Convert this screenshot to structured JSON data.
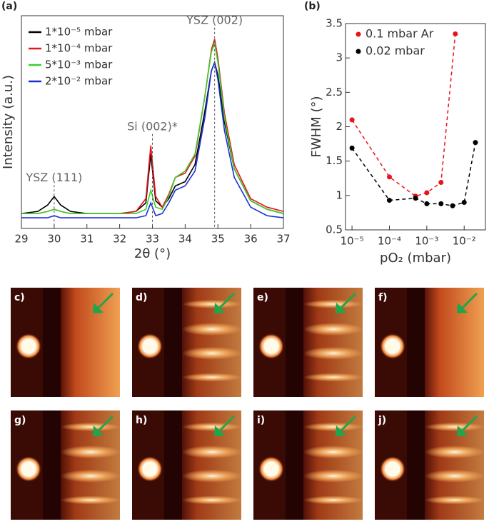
{
  "chart_data": [
    {
      "type": "line",
      "panel_label": "(a)",
      "x_label": "2θ (°)",
      "y_label": "Intensity (a.u.)",
      "x": [
        29,
        29.5,
        29.8,
        30,
        30.2,
        30.5,
        31,
        31.5,
        32,
        32.5,
        32.8,
        32.95,
        33.1,
        33.3,
        33.5,
        33.7,
        34,
        34.3,
        34.6,
        34.8,
        34.9,
        35,
        35.2,
        35.5,
        36,
        36.5,
        37
      ],
      "series": [
        {
          "name": "1*10⁻⁵ mbar",
          "color": "#000000",
          "values": [
            7,
            8,
            11,
            15,
            11,
            8,
            7,
            7,
            7,
            8,
            12,
            35,
            13,
            10,
            14,
            20,
            22,
            30,
            55,
            74,
            78,
            72,
            50,
            28,
            13,
            9,
            7
          ]
        },
        {
          "name": "1*10⁻⁴ mbar",
          "color": "#e8141c",
          "values": [
            7,
            7,
            8,
            9,
            8,
            7,
            7,
            7,
            7,
            8,
            14,
            39,
            15,
            10,
            16,
            24,
            26,
            34,
            62,
            84,
            89,
            80,
            54,
            30,
            14,
            10,
            8
          ]
        },
        {
          "name": "5*10⁻³ mbar",
          "color": "#3ccf2a",
          "values": [
            7,
            7,
            8,
            9,
            8,
            7,
            7,
            7,
            7,
            7,
            9,
            18,
            10,
            9,
            15,
            24,
            27,
            35,
            62,
            83,
            87,
            78,
            52,
            28,
            13,
            9,
            7
          ]
        },
        {
          "name": "2*10⁻² mbar",
          "color": "#1c2fd6",
          "values": [
            5,
            5,
            5,
            6,
            5,
            5,
            5,
            5,
            5,
            5,
            6,
            12,
            6,
            7,
            12,
            18,
            20,
            27,
            52,
            74,
            78,
            70,
            46,
            24,
            10,
            6,
            5
          ]
        }
      ],
      "xlim": [
        29,
        37
      ],
      "xticks": [
        29,
        30,
        31,
        32,
        33,
        34,
        35,
        36,
        37
      ],
      "ylim": [
        0,
        100
      ],
      "annotations": [
        {
          "text": "YSZ (111)",
          "x": 30
        },
        {
          "text": "Si (002)*",
          "x": 33
        },
        {
          "text": "YSZ (002)",
          "x": 34.9
        }
      ]
    },
    {
      "type": "scatter",
      "panel_label": "(b)",
      "x_label": "pO₂ (mbar)",
      "y_label": "FWHM (°)",
      "log_x": true,
      "connect": "dashed",
      "series": [
        {
          "name": "0.1 mbar Ar",
          "color": "#e8141c",
          "x": [
            1e-05,
            0.0001,
            0.0005,
            0.001,
            0.0024,
            0.0058
          ],
          "values": [
            2.1,
            1.27,
            0.99,
            1.04,
            1.19,
            3.35
          ]
        },
        {
          "name": "0.02 mbar",
          "color": "#000000",
          "x": [
            1e-05,
            0.0001,
            0.0005,
            0.001,
            0.0024,
            0.0049,
            0.01,
            0.02
          ],
          "values": [
            1.69,
            0.93,
            0.96,
            0.88,
            0.88,
            0.85,
            0.9,
            1.77
          ]
        }
      ],
      "xlim": [
        6.7e-06,
        0.037
      ],
      "xticks": [
        {
          "value": 1e-05,
          "label": "10⁻⁵"
        },
        {
          "value": 0.0001,
          "label": "10⁻⁴"
        },
        {
          "value": 0.001,
          "label": "10⁻³"
        },
        {
          "value": 0.01,
          "label": "10⁻²"
        }
      ],
      "ylim": [
        0.5,
        3.5
      ],
      "yticks": [
        0.5,
        1,
        1.5,
        2,
        2.5,
        3,
        3.5
      ]
    }
  ],
  "images": [
    {
      "label": "c)",
      "streaks": false
    },
    {
      "label": "d)",
      "streaks": true
    },
    {
      "label": "e)",
      "streaks": true
    },
    {
      "label": "f)",
      "streaks": false
    },
    {
      "label": "g)",
      "streaks": true
    },
    {
      "label": "h)",
      "streaks": true
    },
    {
      "label": "i)",
      "streaks": true
    },
    {
      "label": "j)",
      "streaks": true
    }
  ]
}
